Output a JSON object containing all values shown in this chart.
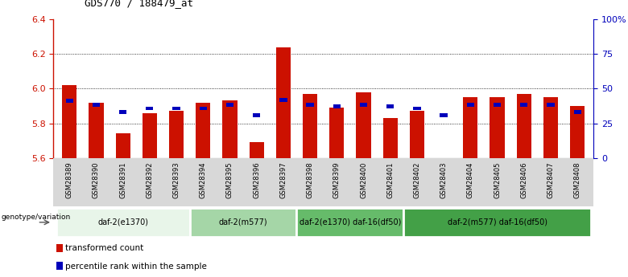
{
  "title": "GDS770 / 188479_at",
  "samples": [
    "GSM28389",
    "GSM28390",
    "GSM28391",
    "GSM28392",
    "GSM28393",
    "GSM28394",
    "GSM28395",
    "GSM28396",
    "GSM28397",
    "GSM28398",
    "GSM28399",
    "GSM28400",
    "GSM28401",
    "GSM28402",
    "GSM28403",
    "GSM28404",
    "GSM28405",
    "GSM28406",
    "GSM28407",
    "GSM28408"
  ],
  "bar_values": [
    6.02,
    5.92,
    5.74,
    5.86,
    5.87,
    5.92,
    5.93,
    5.69,
    6.24,
    5.97,
    5.89,
    5.98,
    5.83,
    5.87,
    5.57,
    5.95,
    5.95,
    5.97,
    5.95,
    5.9
  ],
  "percentile_values": [
    5.92,
    5.895,
    5.855,
    5.875,
    5.875,
    5.875,
    5.895,
    5.835,
    5.925,
    5.895,
    5.885,
    5.895,
    5.885,
    5.875,
    5.835,
    5.895,
    5.895,
    5.895,
    5.895,
    5.855
  ],
  "ymin": 5.6,
  "ymax": 6.4,
  "yticks": [
    5.6,
    5.8,
    6.0,
    6.2,
    6.4
  ],
  "right_yticks": [
    0,
    25,
    50,
    75,
    100
  ],
  "right_yticklabels": [
    "0",
    "25",
    "50",
    "75",
    "100%"
  ],
  "bar_color": "#cc1100",
  "blue_color": "#0000bb",
  "groups": [
    {
      "label": "daf-2(e1370)",
      "start": 0,
      "end": 5,
      "color": "#e8f5e9"
    },
    {
      "label": "daf-2(m577)",
      "start": 5,
      "end": 9,
      "color": "#a5d6a7"
    },
    {
      "label": "daf-2(e1370) daf-16(df50)",
      "start": 9,
      "end": 13,
      "color": "#66bb6a"
    },
    {
      "label": "daf-2(m577) daf-16(df50)",
      "start": 13,
      "end": 20,
      "color": "#43a047"
    }
  ],
  "genotype_label": "genotype/variation",
  "legend_items": [
    {
      "label": "transformed count",
      "color": "#cc1100"
    },
    {
      "label": "percentile rank within the sample",
      "color": "#0000bb"
    }
  ],
  "left_axis_color": "#cc1100",
  "right_axis_color": "#0000bb",
  "gray_bg": "#d8d8d8"
}
